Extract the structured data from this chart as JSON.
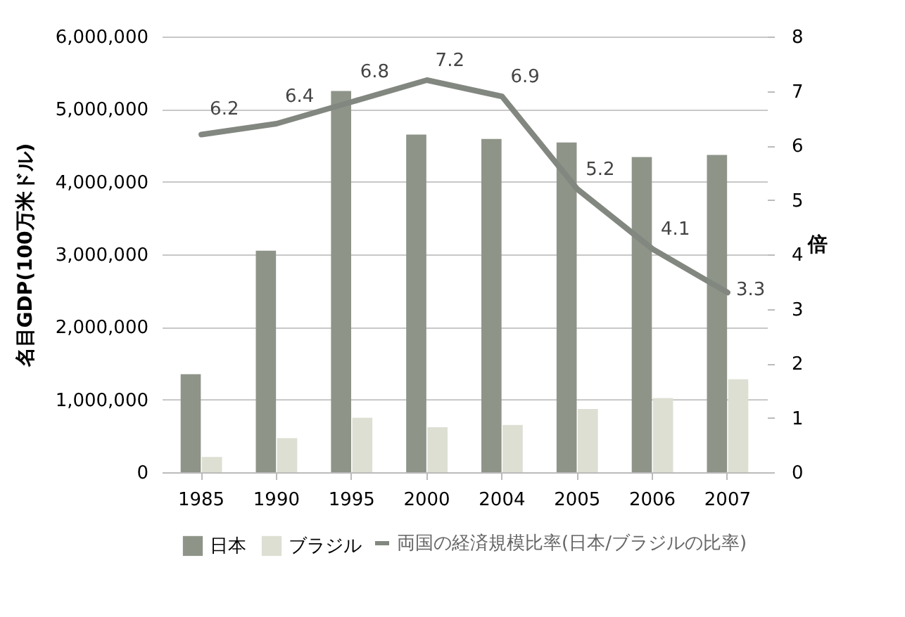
{
  "chart_data": {
    "type": "bar",
    "categories": [
      "1985",
      "1990",
      "1995",
      "2000",
      "2004",
      "2005",
      "2006",
      "2007"
    ],
    "ylabel": "名目GDP(100万米ドル)",
    "y2label": "倍",
    "ylim": [
      0,
      6000000
    ],
    "yticks": [
      {
        "value": 0,
        "label": "0"
      },
      {
        "value": 1000000,
        "label": "1,000,000"
      },
      {
        "value": 2000000,
        "label": "2,000,000"
      },
      {
        "value": 3000000,
        "label": "3,000,000"
      },
      {
        "value": 4000000,
        "label": "4,000,000"
      },
      {
        "value": 5000000,
        "label": "5,000,000"
      },
      {
        "value": 6000000,
        "label": "6,000,000"
      }
    ],
    "y2lim": [
      0,
      8
    ],
    "y2ticks": [
      0,
      1,
      2,
      3,
      4,
      5,
      6,
      7,
      8
    ],
    "grid": "y",
    "legend": "bottom",
    "series": [
      {
        "name": "日本",
        "color": "#8e9488",
        "values": [
          1350000,
          3050000,
          5250000,
          4650000,
          4590000,
          4540000,
          4340000,
          4370000
        ]
      },
      {
        "name": "ブラジル",
        "color": "#dcdfd2",
        "values": [
          210000,
          470000,
          750000,
          620000,
          650000,
          870000,
          1020000,
          1280000
        ]
      },
      {
        "name": "両国の経済規模比率(日本/ブラジルの比率)",
        "type": "line",
        "axis": "y2",
        "color": "#828780",
        "values": [
          6.2,
          6.4,
          6.8,
          7.2,
          6.9,
          5.2,
          4.1,
          3.3
        ],
        "value_labels": [
          "6.2",
          "6.4",
          "6.8",
          "7.2",
          "6.9",
          "5.2",
          "4.1",
          "3.3"
        ]
      }
    ]
  }
}
